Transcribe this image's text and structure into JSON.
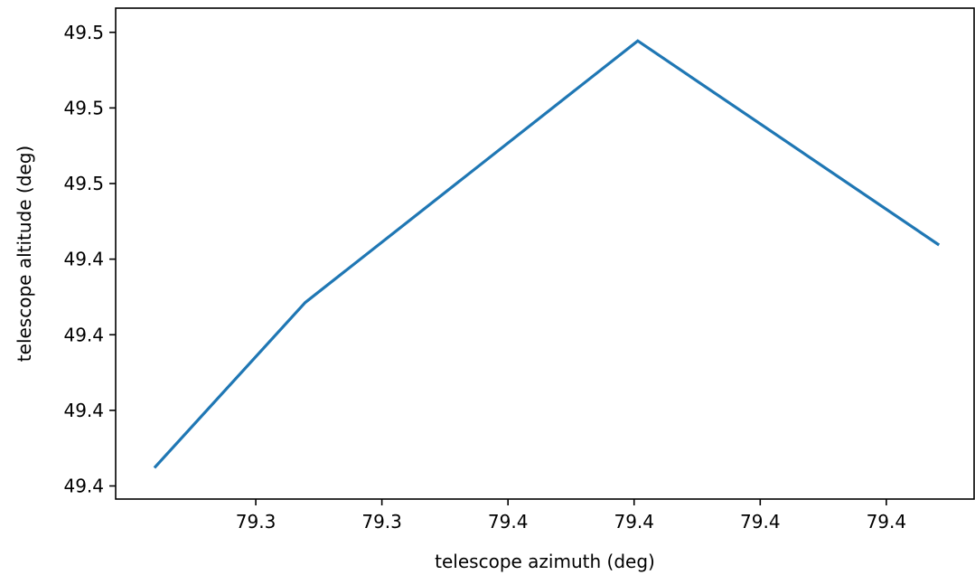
{
  "chart_data": {
    "type": "line",
    "xlabel": "telescope azimuth (deg)",
    "ylabel": "telescope altitude (deg)",
    "x_ticks": [
      {
        "value": 79.2868,
        "label": "79.3"
      },
      {
        "value": 79.3174,
        "label": "79.3"
      },
      {
        "value": 79.348,
        "label": "79.4"
      },
      {
        "value": 79.3786,
        "label": "79.4"
      },
      {
        "value": 79.4092,
        "label": "79.4"
      },
      {
        "value": 79.4398,
        "label": "79.4"
      }
    ],
    "y_ticks": [
      {
        "value": 49.415,
        "label": "49.4"
      },
      {
        "value": 49.43,
        "label": "49.4"
      },
      {
        "value": 49.445,
        "label": "49.4"
      },
      {
        "value": 49.46,
        "label": "49.4"
      },
      {
        "value": 49.475,
        "label": "49.5"
      },
      {
        "value": 49.49,
        "label": "49.5"
      },
      {
        "value": 49.505,
        "label": "49.5"
      }
    ],
    "xlim": [
      79.2528,
      79.4611
    ],
    "ylim": [
      49.4124,
      49.5098
    ],
    "series": [
      {
        "color": "#1f77b4",
        "x": [
          79.2622,
          79.2988,
          79.3795,
          79.4526
        ],
        "y": [
          49.4186,
          49.4514,
          49.5033,
          49.4628
        ]
      }
    ],
    "grid": false,
    "legend": "none"
  }
}
